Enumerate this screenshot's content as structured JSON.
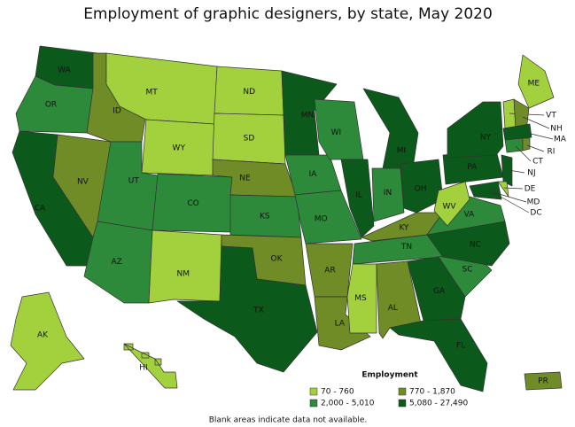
{
  "title": "Employment of graphic designers, by state, May 2020",
  "note": "Blank areas indicate data not available.",
  "legend": {
    "title": "Employment",
    "items": [
      {
        "label": "70 - 760",
        "color": "#a2d13d"
      },
      {
        "label": "770 - 1,870",
        "color": "#6f8c26"
      },
      {
        "label": "2,000 - 5,010",
        "color": "#2d8a3a"
      },
      {
        "label": "5,080 - 27,490",
        "color": "#0c5a1b"
      }
    ]
  },
  "states": [
    {
      "label": "WA",
      "color": "#0c5a1b"
    },
    {
      "label": "OR",
      "color": "#2d8a3a"
    },
    {
      "label": "CA",
      "color": "#0c5a1b"
    },
    {
      "label": "NV",
      "color": "#6f8c26"
    },
    {
      "label": "ID",
      "color": "#6f8c26"
    },
    {
      "label": "MT",
      "color": "#a2d13d"
    },
    {
      "label": "WY",
      "color": "#a2d13d"
    },
    {
      "label": "UT",
      "color": "#2d8a3a"
    },
    {
      "label": "AZ",
      "color": "#2d8a3a"
    },
    {
      "label": "CO",
      "color": "#2d8a3a"
    },
    {
      "label": "NM",
      "color": "#a2d13d"
    },
    {
      "label": "ND",
      "color": "#a2d13d"
    },
    {
      "label": "SD",
      "color": "#a2d13d"
    },
    {
      "label": "NE",
      "color": "#6f8c26"
    },
    {
      "label": "KS",
      "color": "#2d8a3a"
    },
    {
      "label": "OK",
      "color": "#6f8c26"
    },
    {
      "label": "TX",
      "color": "#0c5a1b"
    },
    {
      "label": "MN",
      "color": "#0c5a1b"
    },
    {
      "label": "IA",
      "color": "#2d8a3a"
    },
    {
      "label": "MO",
      "color": "#2d8a3a"
    },
    {
      "label": "AR",
      "color": "#6f8c26"
    },
    {
      "label": "LA",
      "color": "#6f8c26"
    },
    {
      "label": "WI",
      "color": "#2d8a3a"
    },
    {
      "label": "IL",
      "color": "#0c5a1b"
    },
    {
      "label": "MI",
      "color": "#0c5a1b"
    },
    {
      "label": "IN",
      "color": "#2d8a3a"
    },
    {
      "label": "OH",
      "color": "#0c5a1b"
    },
    {
      "label": "KY",
      "color": "#6f8c26"
    },
    {
      "label": "TN",
      "color": "#2d8a3a"
    },
    {
      "label": "MS",
      "color": "#a2d13d"
    },
    {
      "label": "AL",
      "color": "#6f8c26"
    },
    {
      "label": "GA",
      "color": "#0c5a1b"
    },
    {
      "label": "FL",
      "color": "#0c5a1b"
    },
    {
      "label": "SC",
      "color": "#2d8a3a"
    },
    {
      "label": "NC",
      "color": "#0c5a1b"
    },
    {
      "label": "VA",
      "color": "#2d8a3a"
    },
    {
      "label": "WV",
      "color": "#a2d13d"
    },
    {
      "label": "PA",
      "color": "#0c5a1b"
    },
    {
      "label": "NY",
      "color": "#0c5a1b"
    },
    {
      "label": "ME",
      "color": "#a2d13d"
    },
    {
      "label": "VT",
      "color": "#a2d13d"
    },
    {
      "label": "NH",
      "color": "#6f8c26"
    },
    {
      "label": "MA",
      "color": "#0c5a1b"
    },
    {
      "label": "CT",
      "color": "#2d8a3a"
    },
    {
      "label": "RI",
      "color": "#6f8c26"
    },
    {
      "label": "NJ",
      "color": "#0c5a1b"
    },
    {
      "label": "DE",
      "color": "#a2d13d"
    },
    {
      "label": "MD",
      "color": "#0c5a1b"
    },
    {
      "label": "DC",
      "color": "#0c5a1b"
    },
    {
      "label": "AK",
      "color": "#a2d13d"
    },
    {
      "label": "HI",
      "color": "#a2d13d"
    },
    {
      "label": "PR",
      "color": "#6f8c26"
    }
  ]
}
